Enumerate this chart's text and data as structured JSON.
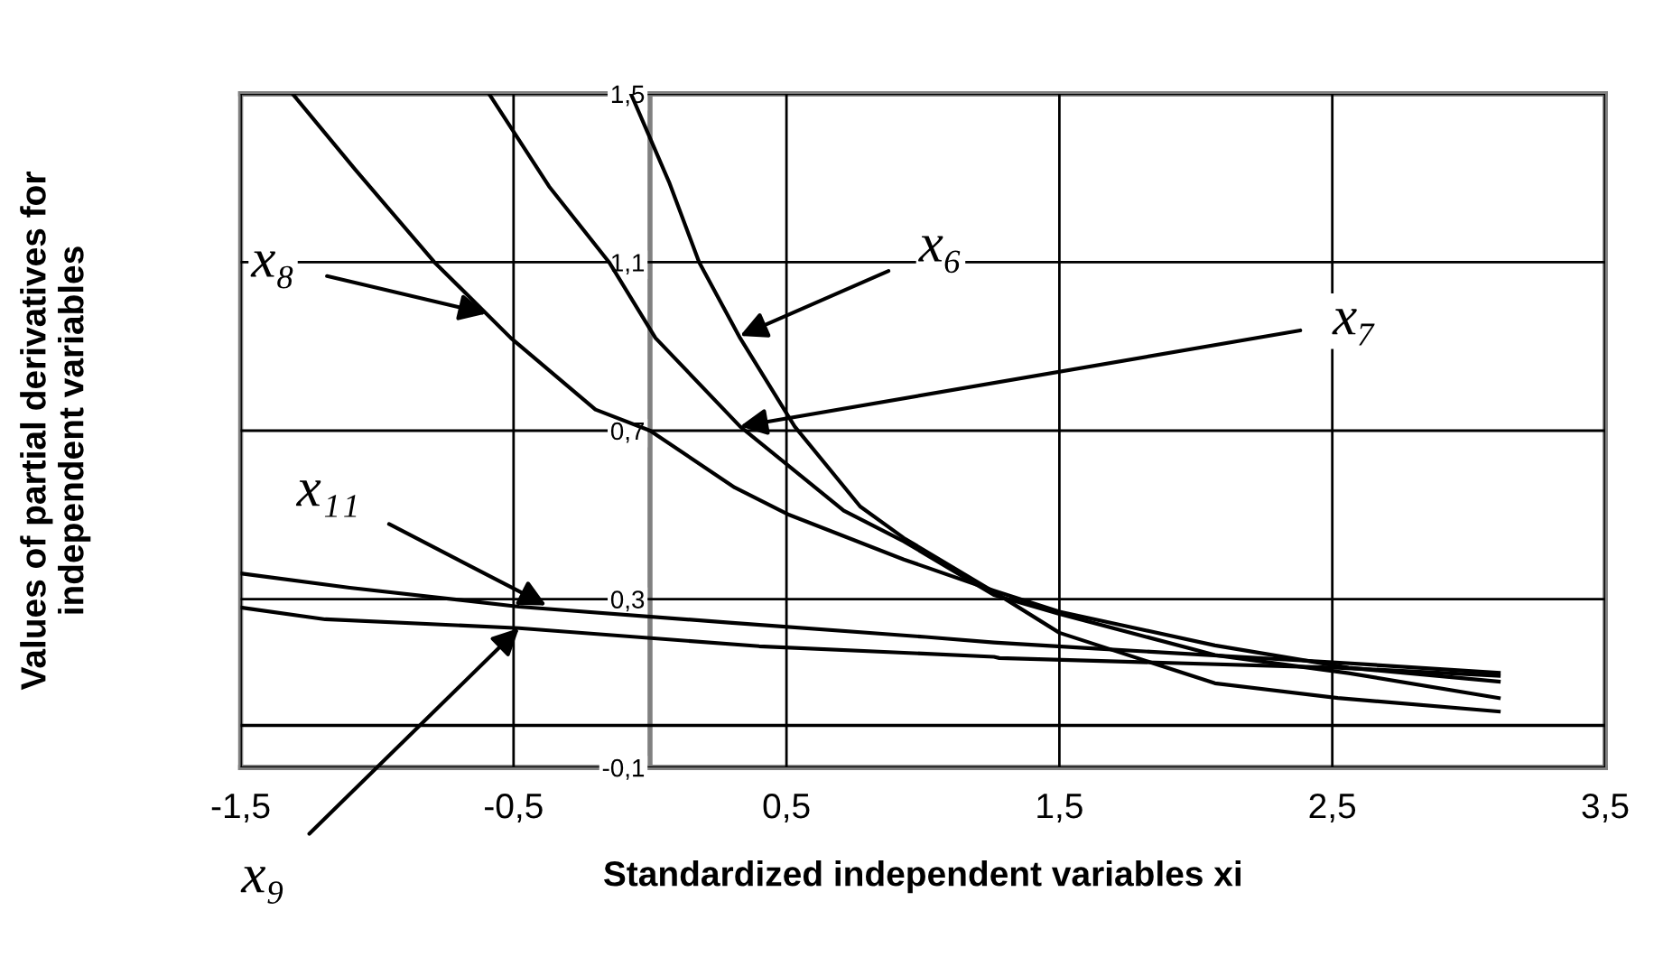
{
  "chart_data": {
    "type": "line",
    "xlabel": "Standardized independent variables xi",
    "ylabel": "Values of partial derivatives for\nindependent variables",
    "xlim": [
      -1.5,
      3.5
    ],
    "ylim": [
      -0.1,
      1.5
    ],
    "xticks": [
      {
        "value": -1.5,
        "label": "-1,5"
      },
      {
        "value": -0.5,
        "label": "-0,5"
      },
      {
        "value": 0.5,
        "label": "0,5"
      },
      {
        "value": 1.5,
        "label": "1,5"
      },
      {
        "value": 2.5,
        "label": "2,5"
      },
      {
        "value": 3.5,
        "label": "3,5"
      }
    ],
    "yticks": [
      {
        "value": -0.1,
        "label": "-0,1"
      },
      {
        "value": 0.3,
        "label": "0,3"
      },
      {
        "value": 0.7,
        "label": "0,7"
      },
      {
        "value": 1.1,
        "label": "1,1"
      },
      {
        "value": 1.5,
        "label": "1,5"
      }
    ],
    "grid": true,
    "line_style": "solid",
    "ref_lines": [
      {
        "axis": "y",
        "value": 0,
        "color": "#000000"
      }
    ],
    "series": [
      {
        "color": "#000000",
        "x": [
          -0.07,
          0.07,
          0.18,
          0.33,
          0.53,
          0.77,
          0.93,
          1.26,
          1.5,
          2.07,
          2.52,
          3.11
        ],
        "values": [
          1.5,
          1.29,
          1.1,
          0.92,
          0.71,
          0.52,
          0.445,
          0.317,
          0.22,
          0.1,
          0.065,
          0.033
        ]
      },
      {
        "color": "#000000",
        "x": [
          -0.59,
          -0.37,
          -0.15,
          0.02,
          0.33,
          0.71,
          0.93,
          1.26,
          1.5,
          2.07,
          2.56,
          3.11
        ],
        "values": [
          1.5,
          1.28,
          1.1,
          0.92,
          0.71,
          0.51,
          0.437,
          0.31,
          0.265,
          0.167,
          0.124,
          0.065
        ]
      },
      {
        "color": "#000000",
        "x": [
          -1.31,
          -1.08,
          -0.79,
          -0.51,
          -0.2,
          0.0,
          0.31,
          0.51,
          0.93,
          1.26,
          1.5,
          2.07,
          2.56,
          3.11
        ],
        "values": [
          1.5,
          1.32,
          1.1,
          0.92,
          0.75,
          0.7,
          0.565,
          0.5,
          0.394,
          0.32,
          0.27,
          0.19,
          0.137,
          0.104
        ]
      },
      {
        "color": "#000000",
        "x": [
          -1.5,
          -1.1,
          -0.48,
          0.29,
          1.01,
          1.26,
          1.59,
          2.5,
          3.11
        ],
        "values": [
          0.361,
          0.327,
          0.282,
          0.244,
          0.21,
          0.197,
          0.184,
          0.15,
          0.125
        ]
      },
      {
        "color": "#000000",
        "x": [
          -1.5,
          -1.19,
          -0.48,
          0.4,
          1.26,
          1.28,
          2.52,
          3.11
        ],
        "values": [
          0.28,
          0.252,
          0.231,
          0.188,
          0.163,
          0.16,
          0.137,
          0.118
        ]
      }
    ],
    "annotations": [
      {
        "text": "x₆",
        "x": 0.33,
        "y": 0.925
      },
      {
        "text": "x₇",
        "x": 0.33,
        "y": 0.71
      },
      {
        "text": "x₈",
        "x": -0.6,
        "y": 0.978
      },
      {
        "text": "x₁₁",
        "x": -0.38,
        "y": 0.285
      },
      {
        "text": "x₉",
        "x": -0.48,
        "y": 0.231
      }
    ]
  }
}
